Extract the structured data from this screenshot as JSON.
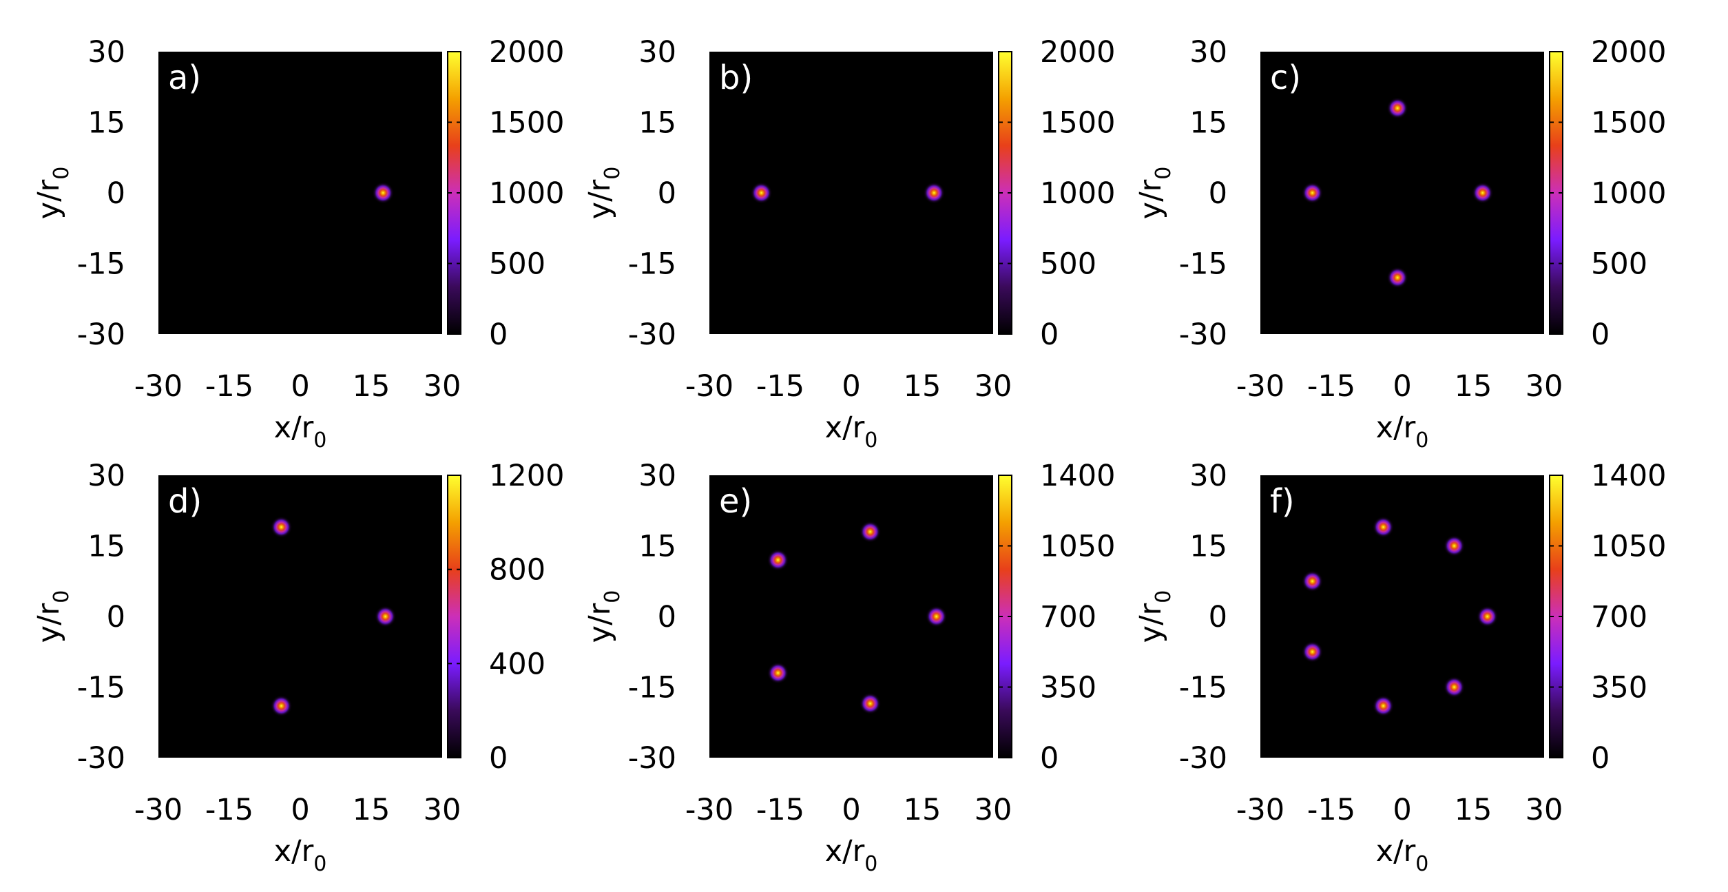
{
  "colormap": {
    "name": "gnuplot-like",
    "stops": [
      "#000000",
      "#3a0a5a",
      "#7a1cff",
      "#cc2fb8",
      "#e8401a",
      "#f4a000",
      "#ffff30"
    ]
  },
  "axes": {
    "xlabel_main": "x/r",
    "xlabel_sub": "0",
    "ylabel_main": "y/r",
    "ylabel_sub": "0"
  },
  "chart_data": [
    {
      "type": "heatmap",
      "panel_label": "a)",
      "xlim": [
        -30,
        30
      ],
      "ylim": [
        -30,
        30
      ],
      "xticks": [
        "-30",
        "-15",
        "0",
        "15",
        "30"
      ],
      "yticks": [
        "30",
        "15",
        "0",
        "-15",
        "-30"
      ],
      "colorbar": {
        "range": [
          0,
          2000
        ],
        "ticks": [
          "2000",
          "1500",
          "1000",
          "500",
          "0"
        ]
      },
      "peaks": [
        {
          "x": 17.5,
          "y": 0,
          "value": 2000
        }
      ]
    },
    {
      "type": "heatmap",
      "panel_label": "b)",
      "xlim": [
        -30,
        30
      ],
      "ylim": [
        -30,
        30
      ],
      "xticks": [
        "-30",
        "-15",
        "0",
        "15",
        "30"
      ],
      "yticks": [
        "30",
        "15",
        "0",
        "-15",
        "-30"
      ],
      "colorbar": {
        "range": [
          0,
          2000
        ],
        "ticks": [
          "2000",
          "1500",
          "1000",
          "500",
          "0"
        ]
      },
      "peaks": [
        {
          "x": -19,
          "y": 0,
          "value": 2000
        },
        {
          "x": 17.5,
          "y": 0,
          "value": 2000
        }
      ]
    },
    {
      "type": "heatmap",
      "panel_label": "c)",
      "xlim": [
        -30,
        30
      ],
      "ylim": [
        -30,
        30
      ],
      "xticks": [
        "-30",
        "-15",
        "0",
        "15",
        "30"
      ],
      "yticks": [
        "30",
        "15",
        "0",
        "-15",
        "-30"
      ],
      "colorbar": {
        "range": [
          0,
          2000
        ],
        "ticks": [
          "2000",
          "1500",
          "1000",
          "500",
          "0"
        ]
      },
      "peaks": [
        {
          "x": -19,
          "y": 0,
          "value": 1900
        },
        {
          "x": 17,
          "y": 0,
          "value": 1900
        },
        {
          "x": -1,
          "y": 18,
          "value": 1900
        },
        {
          "x": -1,
          "y": -18,
          "value": 1900
        }
      ]
    },
    {
      "type": "heatmap",
      "panel_label": "d)",
      "xlim": [
        -30,
        30
      ],
      "ylim": [
        -30,
        30
      ],
      "xticks": [
        "-30",
        "-15",
        "0",
        "15",
        "30"
      ],
      "yticks": [
        "30",
        "15",
        "0",
        "-15",
        "-30"
      ],
      "colorbar": {
        "range": [
          0,
          1200
        ],
        "ticks": [
          "1200",
          "800",
          "400",
          "0"
        ]
      },
      "peaks": [
        {
          "x": 18,
          "y": 0,
          "value": 1150
        },
        {
          "x": -4,
          "y": 19,
          "value": 1150
        },
        {
          "x": -4,
          "y": -19,
          "value": 1150
        }
      ]
    },
    {
      "type": "heatmap",
      "panel_label": "e)",
      "xlim": [
        -30,
        30
      ],
      "ylim": [
        -30,
        30
      ],
      "xticks": [
        "-30",
        "-15",
        "0",
        "15",
        "30"
      ],
      "yticks": [
        "30",
        "15",
        "0",
        "-15",
        "-30"
      ],
      "colorbar": {
        "range": [
          0,
          1400
        ],
        "ticks": [
          "1400",
          "1050",
          "700",
          "350",
          "0"
        ]
      },
      "peaks": [
        {
          "x": 18,
          "y": 0,
          "value": 1350
        },
        {
          "x": 4,
          "y": 18,
          "value": 1350
        },
        {
          "x": -15.5,
          "y": 12,
          "value": 1350
        },
        {
          "x": -15.5,
          "y": -12,
          "value": 1350
        },
        {
          "x": 4,
          "y": -18.5,
          "value": 1350
        }
      ]
    },
    {
      "type": "heatmap",
      "panel_label": "f)",
      "xlim": [
        -30,
        30
      ],
      "ylim": [
        -30,
        30
      ],
      "xticks": [
        "-30",
        "-15",
        "0",
        "15",
        "30"
      ],
      "yticks": [
        "30",
        "15",
        "0",
        "-15",
        "-30"
      ],
      "colorbar": {
        "range": [
          0,
          1400
        ],
        "ticks": [
          "1400",
          "1050",
          "700",
          "350",
          "0"
        ]
      },
      "peaks": [
        {
          "x": 18,
          "y": 0,
          "value": 1300
        },
        {
          "x": 11,
          "y": 15,
          "value": 1300
        },
        {
          "x": -4,
          "y": 19,
          "value": 1300
        },
        {
          "x": -19,
          "y": 7.5,
          "value": 1300
        },
        {
          "x": -19,
          "y": -7.5,
          "value": 1300
        },
        {
          "x": -4,
          "y": -19,
          "value": 1300
        },
        {
          "x": 11,
          "y": -15,
          "value": 1300
        }
      ]
    }
  ]
}
